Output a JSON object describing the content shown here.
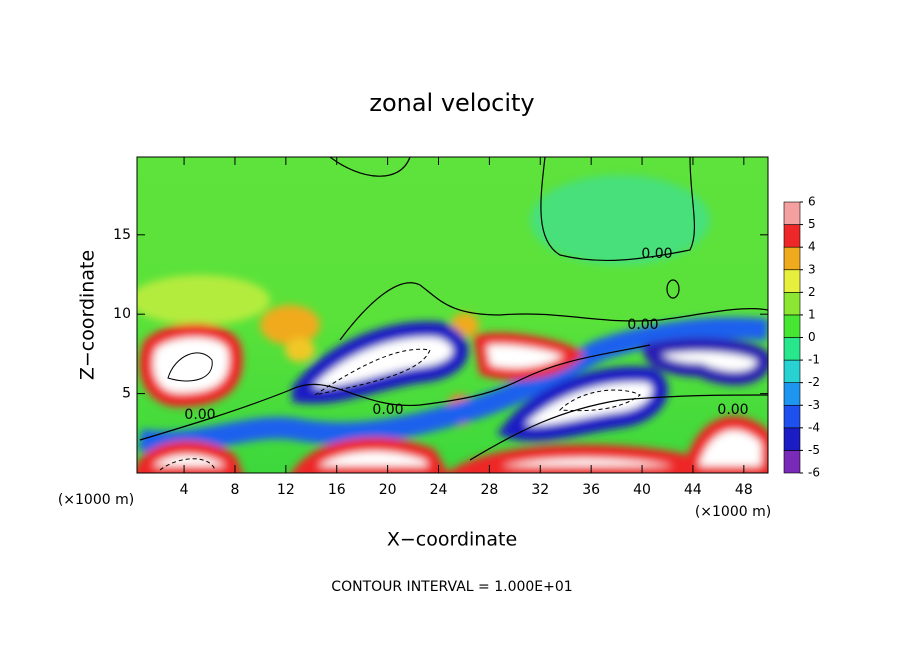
{
  "chart_data": {
    "type": "contour",
    "title": "zonal velocity",
    "x_label": "X−coordinate",
    "y_label": "Z−coordinate",
    "x_unit": "(×1000 m)",
    "y_unit": "(×1000 m)",
    "xlim": [
      0.3,
      49.9
    ],
    "ylim": [
      0,
      19.9
    ],
    "xticks": [
      4,
      8,
      12,
      16,
      20,
      24,
      28,
      32,
      36,
      40,
      44,
      48
    ],
    "yticks": [
      5,
      10,
      15
    ],
    "colorbar": {
      "ticks": [
        -6,
        -5,
        -4,
        -3,
        -2,
        -1,
        0,
        1,
        2,
        3,
        4,
        5,
        6
      ],
      "colors": [
        "#7a2ab8",
        "#1c1cc4",
        "#1e50ee",
        "#1e96f0",
        "#28d2d2",
        "#28e68c",
        "#46e632",
        "#8ce632",
        "#e6f03c",
        "#f0aa1e",
        "#ee2828",
        "#f4a0a0"
      ]
    },
    "contour_labels": [
      {
        "value": 0,
        "label": "0.00"
      },
      {
        "value": 0,
        "label": "0.00"
      },
      {
        "value": 0,
        "label": "0.00"
      },
      {
        "value": 0,
        "label": "0.00"
      },
      {
        "value": 0,
        "label": "0.00"
      }
    ],
    "footnote": "CONTOUR INTERVAL = 1.000E+01"
  }
}
